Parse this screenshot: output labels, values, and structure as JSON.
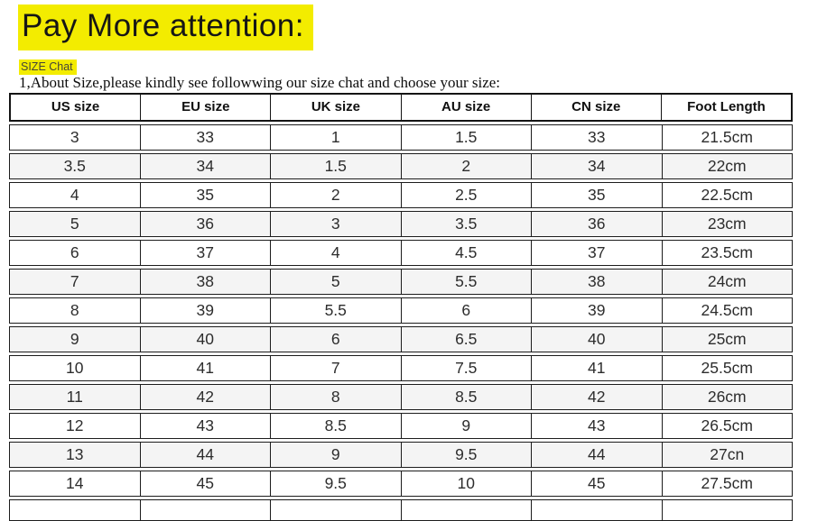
{
  "header": {
    "title": "Pay More attention:",
    "size_chat_label": "SIZE Chat",
    "note": "1,About Size,please kindly see followwing our size chat and choose your size:"
  },
  "colors": {
    "highlight_yellow": "#f3ec00",
    "row_alt_gray": "#f4f4f4",
    "table_border": "#1c1c1c",
    "text_dark": "#2d2d2d"
  },
  "table": {
    "columns": [
      "US size",
      "EU size",
      "UK size",
      "AU size",
      "CN size",
      "Foot Length"
    ],
    "rows": [
      [
        "3",
        "33",
        "1",
        "1.5",
        "33",
        "21.5cm"
      ],
      [
        "3.5",
        "34",
        "1.5",
        "2",
        "34",
        "22cm"
      ],
      [
        "4",
        "35",
        "2",
        "2.5",
        "35",
        "22.5cm"
      ],
      [
        "5",
        "36",
        "3",
        "3.5",
        "36",
        "23cm"
      ],
      [
        "6",
        "37",
        "4",
        "4.5",
        "37",
        "23.5cm"
      ],
      [
        "7",
        "38",
        "5",
        "5.5",
        "38",
        "24cm"
      ],
      [
        "8",
        "39",
        "5.5",
        "6",
        "39",
        "24.5cm"
      ],
      [
        "9",
        "40",
        "6",
        "6.5",
        "40",
        "25cm"
      ],
      [
        "10",
        "41",
        "7",
        "7.5",
        "41",
        "25.5cm"
      ],
      [
        "11",
        "42",
        "8",
        "8.5",
        "42",
        "26cm"
      ],
      [
        "12",
        "43",
        "8.5",
        "9",
        "43",
        "26.5cm"
      ],
      [
        "13",
        "44",
        "9",
        "9.5",
        "44",
        "27cn"
      ],
      [
        "14",
        "45",
        "9.5",
        "10",
        "45",
        "27.5cm"
      ]
    ]
  }
}
